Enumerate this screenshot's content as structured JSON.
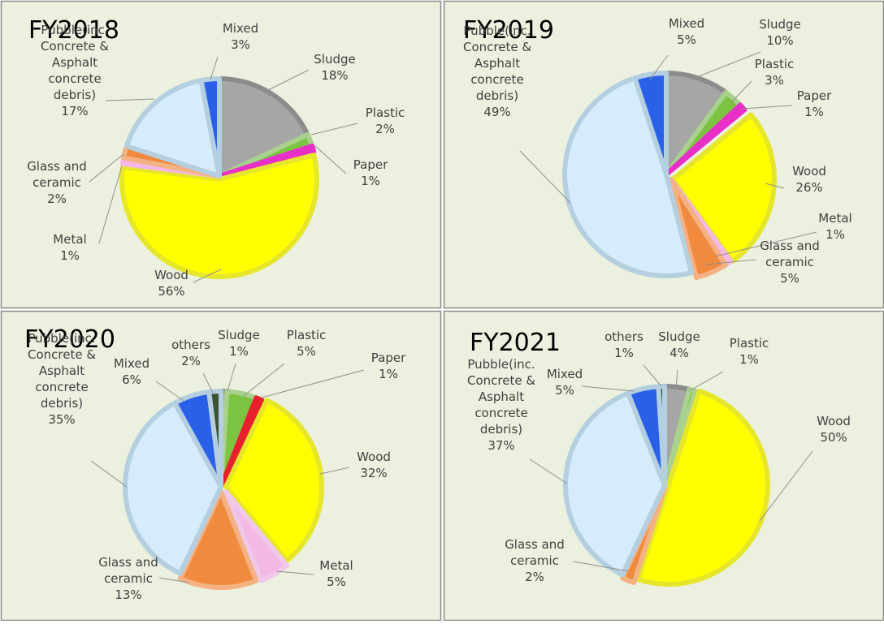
{
  "chart_data": [
    {
      "type": "pie",
      "title": "FY2018",
      "slices": [
        {
          "name": "Sludge",
          "value": 18,
          "label": [
            "Sludge",
            "18%"
          ],
          "color": "#a6a6a6",
          "border": "#8c8c8c"
        },
        {
          "name": "Plastic",
          "value": 2,
          "label": [
            "Plastic",
            "2%"
          ],
          "color": "#7cc342",
          "border": "#a9d18e"
        },
        {
          "name": "Paper",
          "value": 1,
          "label": [
            "Paper",
            "1%"
          ],
          "color": "#e830c8",
          "border": "#e830c8"
        },
        {
          "name": "Wood",
          "value": 56,
          "label": [
            "Wood",
            "56%"
          ],
          "color": "#ffff00",
          "border": "#e6e62a"
        },
        {
          "name": "Metal",
          "value": 1,
          "label": [
            "Metal",
            "1%"
          ],
          "color": "#f4b8e4",
          "border": "#f4b8e4"
        },
        {
          "name": "Glass and ceramic",
          "value": 2,
          "label": [
            "Glass and",
            "ceramic",
            "2%"
          ],
          "color": "#f08a3e",
          "border": "#f4b183"
        },
        {
          "name": "Pubble(inc. Concrete & Asphalt concrete debris)",
          "value": 17,
          "label": [
            "Pubble(inc.",
            "Concrete &",
            "Asphalt",
            "concrete",
            "debris)",
            "17%"
          ],
          "color": "#d6ecfb",
          "border": "#b4cfe0"
        },
        {
          "name": "Mixed",
          "value": 3,
          "label": [
            "Mixed",
            "3%"
          ],
          "color": "#2a5fe8",
          "border": "#b4cfe0"
        }
      ]
    },
    {
      "type": "pie",
      "title": "FY2019",
      "slices": [
        {
          "name": "Sludge",
          "value": 10,
          "label": [
            "Sludge",
            "10%"
          ],
          "color": "#a6a6a6",
          "border": "#8c8c8c"
        },
        {
          "name": "Plastic",
          "value": 3,
          "label": [
            "Plastic",
            "3%"
          ],
          "color": "#7cc342",
          "border": "#a9d18e"
        },
        {
          "name": "Paper",
          "value": 1,
          "label": [
            "Paper",
            "1%"
          ],
          "color": "#e830c8",
          "border": "#e830c8"
        },
        {
          "name": "Wood",
          "value": 26,
          "label": [
            "Wood",
            "26%"
          ],
          "color": "#ffff00",
          "border": "#e6e62a"
        },
        {
          "name": "Metal",
          "value": 1,
          "label": [
            "Metal",
            "1%"
          ],
          "color": "#f4b8e4",
          "border": "#f4b8e4"
        },
        {
          "name": "Glass and ceramic",
          "value": 5,
          "label": [
            "Glass and",
            "ceramic",
            "5%"
          ],
          "color": "#f08a3e",
          "border": "#f4b183"
        },
        {
          "name": "Pubble(inc. Concrete & Asphalt concrete debris)",
          "value": 49,
          "label": [
            "Pubble(inc.",
            "Concrete &",
            "Asphalt",
            "concrete",
            "debris)",
            "49%"
          ],
          "color": "#d6ecfb",
          "border": "#b4cfe0"
        },
        {
          "name": "Mixed",
          "value": 5,
          "label": [
            "Mixed",
            "5%"
          ],
          "color": "#2a5fe8",
          "border": "#b4cfe0"
        }
      ]
    },
    {
      "type": "pie",
      "title": "FY2020",
      "slices": [
        {
          "name": "Sludge",
          "value": 1,
          "label": [
            "Sludge",
            "1%"
          ],
          "color": "#a6a6a6",
          "border": "#8c8c8c"
        },
        {
          "name": "Plastic",
          "value": 5,
          "label": [
            "Plastic",
            "5%"
          ],
          "color": "#7cc342",
          "border": "#a9d18e"
        },
        {
          "name": "Paper",
          "value": 1,
          "label": [
            "Paper",
            "1%"
          ],
          "color": "#e8202e",
          "border": "#e8202e"
        },
        {
          "name": "Wood",
          "value": 32,
          "label": [
            "Wood",
            "32%"
          ],
          "color": "#ffff00",
          "border": "#e6e62a"
        },
        {
          "name": "Metal",
          "value": 5,
          "label": [
            "Metal",
            "5%"
          ],
          "color": "#f4b8e4",
          "border": "#f0c8e8"
        },
        {
          "name": "Glass and ceramic",
          "value": 13,
          "label": [
            "Glass and",
            "ceramic",
            "13%"
          ],
          "color": "#f08a3e",
          "border": "#f4b183"
        },
        {
          "name": "Pubble(inc. Concrete & Asphalt concrete debris)",
          "value": 35,
          "label": [
            "Pubble(inc.",
            "Concrete &",
            "Asphalt",
            "concrete",
            "debris)",
            "35%"
          ],
          "color": "#d6ecfb",
          "border": "#b4cfe0"
        },
        {
          "name": "Mixed",
          "value": 6,
          "label": [
            "Mixed",
            "6%"
          ],
          "color": "#2a5fe8",
          "border": "#b4cfe0"
        },
        {
          "name": "others",
          "value": 2,
          "label": [
            "others",
            "2%"
          ],
          "color": "#3d5232",
          "border": "#b4cfe0"
        }
      ]
    },
    {
      "type": "pie",
      "title": "FY2021",
      "slices": [
        {
          "name": "Sludge",
          "value": 4,
          "label": [
            "Sludge",
            "4%"
          ],
          "color": "#a6a6a6",
          "border": "#8c8c8c"
        },
        {
          "name": "Plastic",
          "value": 1,
          "label": [
            "Plastic",
            "1%"
          ],
          "color": "#7cc342",
          "border": "#a9d18e"
        },
        {
          "name": "Wood",
          "value": 50,
          "label": [
            "Wood",
            "50%"
          ],
          "color": "#ffff00",
          "border": "#e6e62a"
        },
        {
          "name": "Glass and ceramic",
          "value": 2,
          "label": [
            "Glass and",
            "ceramic",
            "2%"
          ],
          "color": "#f08a3e",
          "border": "#f4b183"
        },
        {
          "name": "Pubble(inc. Concrete & Asphalt concrete debris)",
          "value": 37,
          "label": [
            "Pubble(inc.",
            "Concrete &",
            "Asphalt",
            "concrete",
            "debris)",
            "37%"
          ],
          "color": "#d6ecfb",
          "border": "#b4cfe0"
        },
        {
          "name": "Mixed",
          "value": 5,
          "label": [
            "Mixed",
            "5%"
          ],
          "color": "#2a5fe8",
          "border": "#b4cfe0"
        },
        {
          "name": "others",
          "value": 1,
          "label": [
            "others",
            "1%"
          ],
          "color": "#3d5232",
          "border": "#b4cfe0"
        }
      ]
    }
  ],
  "colors": {
    "panel_background": "#ebf1de",
    "panel_border": "#8a8a8a",
    "label_text": "#404040",
    "leader_line": "#909090"
  }
}
